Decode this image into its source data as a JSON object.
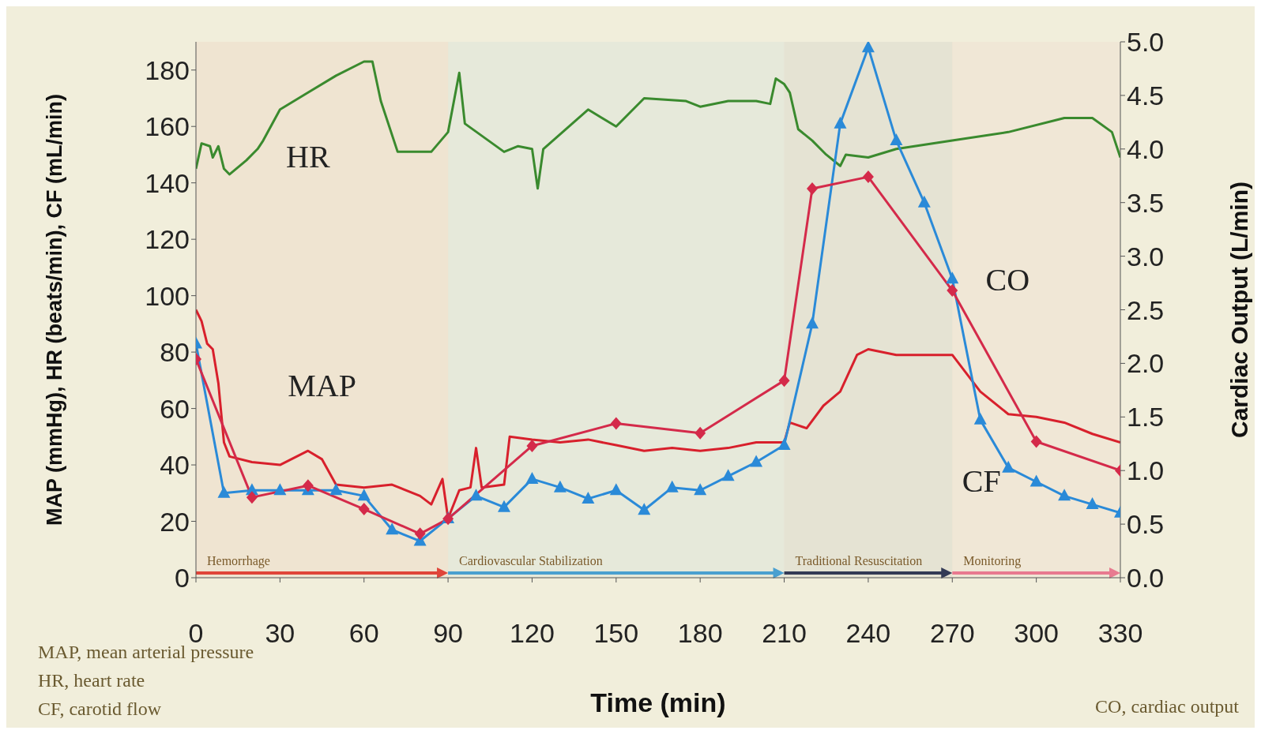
{
  "chart_data": {
    "type": "line",
    "xlabel": "Time (min)",
    "ylabel": "MAP (mmHg), HR (beats/min), CF (mL/min)",
    "y2label": "Cardiac Output (L/min)",
    "xlim": [
      0,
      330
    ],
    "xticks": [
      0,
      30,
      60,
      90,
      120,
      150,
      180,
      210,
      240,
      270,
      300,
      330
    ],
    "ylim": [
      0,
      190
    ],
    "yticks": [
      0,
      20,
      40,
      60,
      80,
      100,
      120,
      140,
      160,
      180
    ],
    "y2lim": [
      0,
      5
    ],
    "y2ticks": [
      {
        "value": 0,
        "label": "0.0"
      },
      0.5,
      {
        "value": 1,
        "label": "1.0"
      },
      1.5,
      {
        "value": 2,
        "label": "2.0"
      },
      2.5,
      {
        "value": 3,
        "label": "3.0"
      },
      3.5,
      {
        "value": 4,
        "label": "4.0"
      },
      4.5,
      {
        "value": 5,
        "label": "5.0"
      }
    ],
    "line_style": "solid",
    "series": [
      {
        "name": "HR",
        "color": "#3a8a2e",
        "marker": "none",
        "x": [
          0,
          2,
          5,
          6,
          8,
          10,
          12,
          18,
          22,
          24,
          30,
          40,
          50,
          60,
          63,
          66,
          72,
          84,
          90,
          94,
          96,
          110,
          115,
          120,
          122,
          124,
          140,
          150,
          160,
          175,
          180,
          190,
          200,
          205,
          207,
          210,
          212,
          215,
          220,
          225,
          230,
          232,
          240,
          250,
          270,
          290,
          310,
          320,
          327,
          330
        ],
        "values": [
          145,
          154,
          153,
          149,
          153,
          145,
          143,
          148,
          152,
          155,
          166,
          172,
          178,
          183,
          183,
          169,
          151,
          151,
          158,
          179,
          161,
          151,
          153,
          152,
          138,
          152,
          166,
          160,
          170,
          169,
          167,
          169,
          169,
          168,
          177,
          175,
          172,
          159,
          155,
          150,
          146,
          150,
          149,
          152,
          155,
          158,
          163,
          163,
          158,
          149
        ]
      },
      {
        "name": "MAP",
        "color": "#d8202c",
        "marker": "none",
        "x": [
          0,
          2,
          4,
          6,
          8,
          10,
          12,
          20,
          30,
          40,
          45,
          50,
          60,
          70,
          80,
          84,
          88,
          90,
          94,
          98,
          100,
          102,
          110,
          112,
          120,
          130,
          140,
          150,
          160,
          170,
          180,
          190,
          200,
          210,
          212,
          218,
          224,
          230,
          236,
          240,
          250,
          260,
          270,
          280,
          290,
          300,
          310,
          320,
          330
        ],
        "values": [
          95,
          91,
          83,
          81,
          69,
          48,
          43,
          41,
          40,
          45,
          42,
          33,
          32,
          33,
          29,
          26,
          35,
          21,
          31,
          32,
          46,
          32,
          33,
          50,
          49,
          48,
          49,
          47,
          45,
          46,
          45,
          46,
          48,
          48,
          55,
          53,
          61,
          66,
          79,
          81,
          79,
          79,
          79,
          66,
          58,
          57,
          55,
          51,
          48
        ]
      },
      {
        "name": "CF",
        "color": "#2a8ad8",
        "marker": "triangle",
        "x": [
          0,
          10,
          20,
          30,
          40,
          50,
          60,
          70,
          80,
          90,
          100,
          110,
          120,
          130,
          140,
          150,
          160,
          170,
          180,
          190,
          200,
          210,
          220,
          230,
          240,
          250,
          260,
          270,
          280,
          290,
          300,
          310,
          320,
          330
        ],
        "values": [
          83,
          30,
          31,
          31,
          31,
          31,
          29,
          17,
          13,
          21,
          29,
          25,
          35,
          32,
          28,
          31,
          24,
          32,
          31,
          36,
          41,
          47,
          90,
          161,
          188,
          155,
          133,
          106,
          56,
          39,
          34,
          29,
          26,
          23
        ]
      },
      {
        "name": "CO",
        "color": "#d42a4a",
        "marker": "diamond",
        "axis": "y2",
        "x": [
          0,
          20,
          40,
          60,
          80,
          90,
          120,
          150,
          180,
          210,
          220,
          240,
          270,
          300,
          330
        ],
        "values": [
          2.04,
          0.75,
          0.86,
          0.64,
          0.41,
          0.55,
          1.23,
          1.44,
          1.35,
          1.84,
          3.63,
          3.74,
          2.68,
          1.27,
          1.0
        ]
      }
    ],
    "bands": [
      {
        "axis": "x",
        "from": 0,
        "to": 90,
        "label": "Hemorrhage",
        "color": "#e0453a"
      },
      {
        "axis": "x",
        "from": 90,
        "to": 210,
        "label": "Cardiovascular Stabilization",
        "color": "#4aa0d0"
      },
      {
        "axis": "x",
        "from": 210,
        "to": 270,
        "label": "Traditional Resuscitation",
        "color": "#333a55"
      },
      {
        "axis": "x",
        "from": 270,
        "to": 330,
        "label": "Monitoring",
        "color": "#e87a90"
      }
    ],
    "annotations": [
      "MAP, mean arterial pressure",
      "HR, heart rate",
      "CF, carotid flow",
      "CO, cardiac output"
    ]
  }
}
